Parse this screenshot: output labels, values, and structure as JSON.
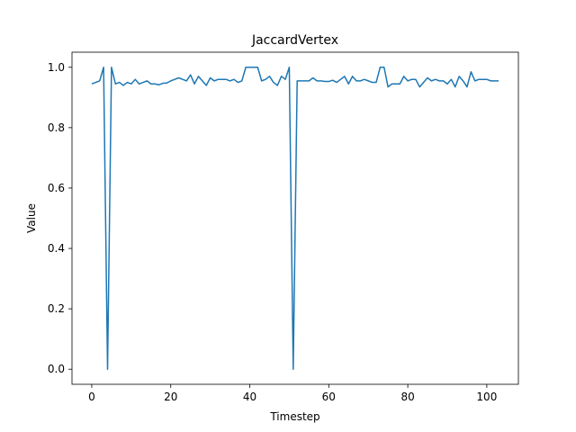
{
  "chart_data": {
    "type": "line",
    "title": "JaccardVertex",
    "xlabel": "Timestep",
    "ylabel": "Value",
    "xlim": [
      -5,
      108
    ],
    "ylim": [
      -0.05,
      1.05
    ],
    "xticks": [
      0,
      20,
      40,
      60,
      80,
      100
    ],
    "yticks": [
      0.0,
      0.2,
      0.4,
      0.6,
      0.8,
      1.0
    ],
    "grid": false,
    "series": [
      {
        "color": "#1f77b4",
        "x": [
          0,
          1,
          2,
          3,
          4,
          5,
          6,
          7,
          8,
          9,
          10,
          11,
          12,
          13,
          14,
          15,
          16,
          17,
          18,
          19,
          20,
          21,
          22,
          23,
          24,
          25,
          26,
          27,
          28,
          29,
          30,
          31,
          32,
          33,
          34,
          35,
          36,
          37,
          38,
          39,
          40,
          41,
          42,
          43,
          44,
          45,
          46,
          47,
          48,
          49,
          50,
          51,
          52,
          53,
          54,
          55,
          56,
          57,
          58,
          59,
          60,
          61,
          62,
          63,
          64,
          65,
          66,
          67,
          68,
          69,
          70,
          71,
          72,
          73,
          74,
          75,
          76,
          77,
          78,
          79,
          80,
          81,
          82,
          83,
          84,
          85,
          86,
          87,
          88,
          89,
          90,
          91,
          92,
          93,
          94,
          95,
          96,
          97,
          98,
          99,
          100,
          101,
          102,
          103
        ],
        "values": [
          0.945,
          0.95,
          0.955,
          1.0,
          0.0,
          1.0,
          0.945,
          0.95,
          0.94,
          0.95,
          0.945,
          0.96,
          0.945,
          0.95,
          0.955,
          0.945,
          0.945,
          0.942,
          0.947,
          0.948,
          0.955,
          0.96,
          0.965,
          0.96,
          0.955,
          0.975,
          0.945,
          0.97,
          0.955,
          0.94,
          0.965,
          0.955,
          0.96,
          0.96,
          0.96,
          0.955,
          0.96,
          0.95,
          0.955,
          1.0,
          1.0,
          1.0,
          1.0,
          0.955,
          0.96,
          0.97,
          0.95,
          0.94,
          0.97,
          0.96,
          1.0,
          0.0,
          0.955,
          0.955,
          0.955,
          0.955,
          0.965,
          0.955,
          0.955,
          0.953,
          0.953,
          0.957,
          0.95,
          0.96,
          0.97,
          0.945,
          0.97,
          0.955,
          0.955,
          0.96,
          0.955,
          0.95,
          0.95,
          1.0,
          1.0,
          0.935,
          0.945,
          0.945,
          0.945,
          0.97,
          0.955,
          0.96,
          0.96,
          0.935,
          0.95,
          0.965,
          0.955,
          0.96,
          0.955,
          0.955,
          0.945,
          0.96,
          0.935,
          0.97,
          0.955,
          0.935,
          0.985,
          0.955,
          0.96,
          0.96,
          0.96,
          0.955,
          0.955,
          0.955
        ]
      }
    ]
  }
}
